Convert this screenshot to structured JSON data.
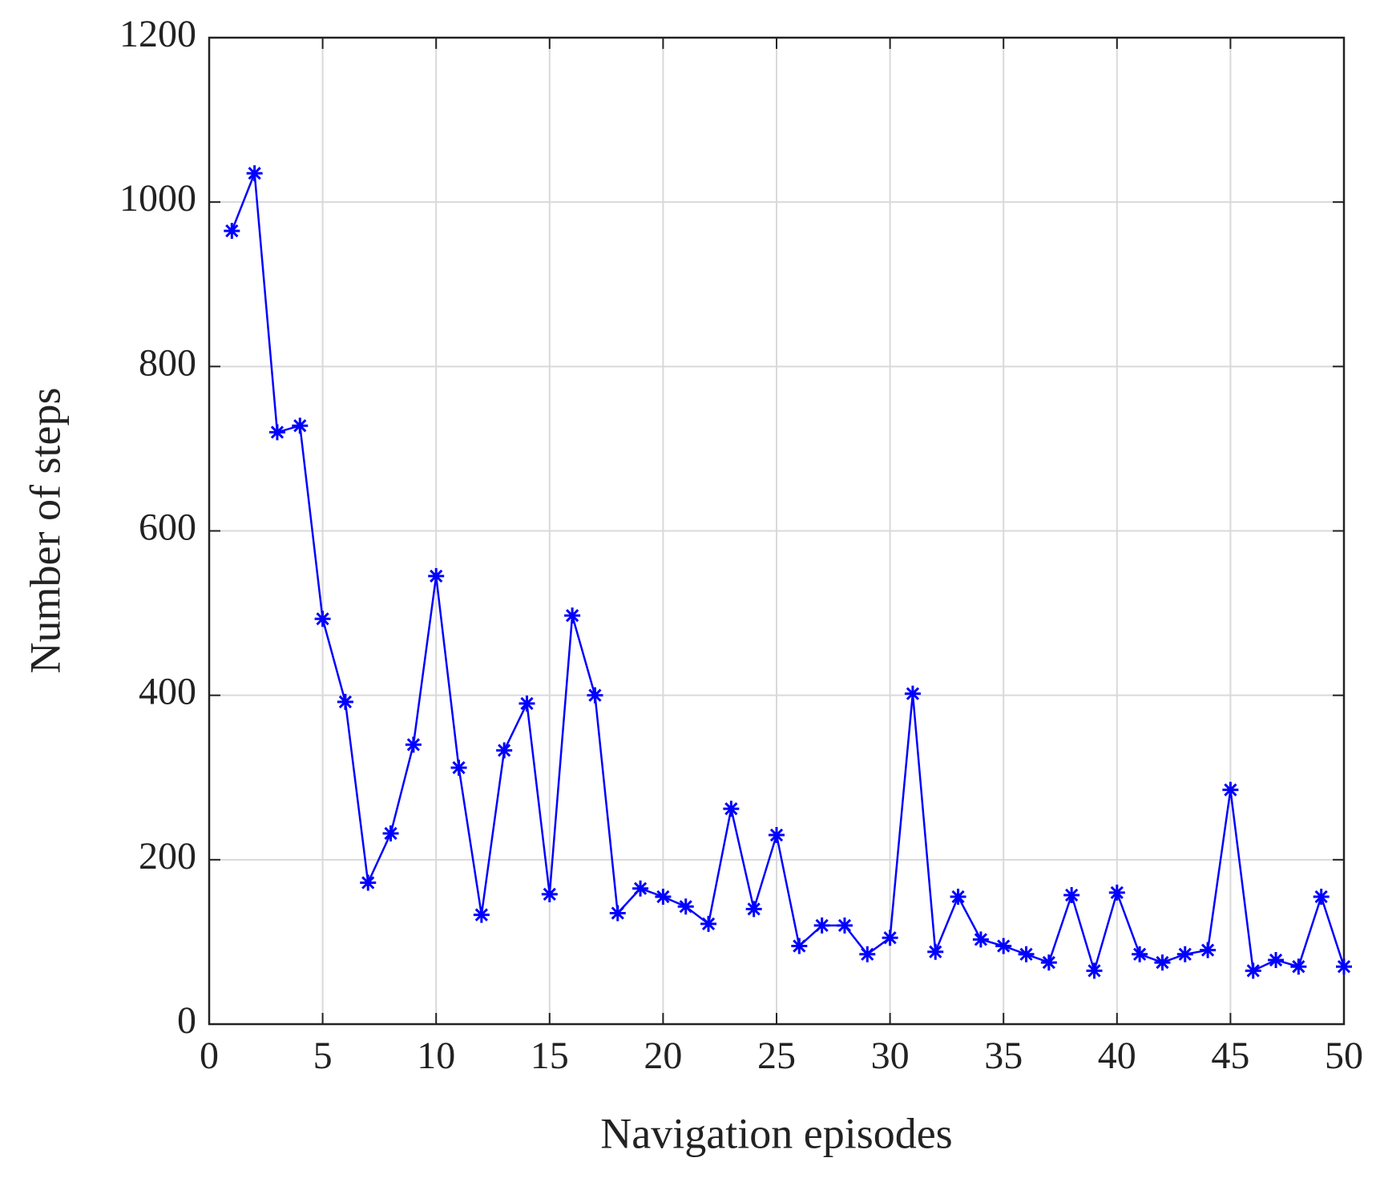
{
  "chart_data": {
    "type": "line",
    "xlabel": "Navigation episodes",
    "ylabel": "Number of steps",
    "x": [
      1,
      2,
      3,
      4,
      5,
      6,
      7,
      8,
      9,
      10,
      11,
      12,
      13,
      14,
      15,
      16,
      17,
      18,
      19,
      20,
      21,
      22,
      23,
      24,
      25,
      26,
      27,
      28,
      29,
      30,
      31,
      32,
      33,
      34,
      35,
      36,
      37,
      38,
      39,
      40,
      41,
      42,
      43,
      44,
      45,
      46,
      47,
      48,
      49,
      50
    ],
    "series": [
      {
        "color": "#0000ff",
        "marker": "asterisk",
        "values": [
          965,
          1035,
          720,
          728,
          493,
          392,
          172,
          232,
          340,
          545,
          312,
          133,
          333,
          390,
          158,
          497,
          400,
          135,
          165,
          155,
          143,
          122,
          262,
          140,
          230,
          95,
          120,
          120,
          85,
          105,
          402,
          88,
          155,
          103,
          95,
          85,
          75,
          157,
          65,
          160,
          85,
          75,
          85,
          90,
          285,
          65,
          78,
          70,
          155,
          70
        ]
      }
    ],
    "xlim": [
      0,
      50
    ],
    "xticks": [
      0,
      5,
      10,
      15,
      20,
      25,
      30,
      35,
      40,
      45,
      50
    ],
    "ylim": [
      0,
      1200
    ],
    "yticks": [
      0,
      200,
      400,
      600,
      800,
      1000,
      1200
    ],
    "grid": true
  }
}
